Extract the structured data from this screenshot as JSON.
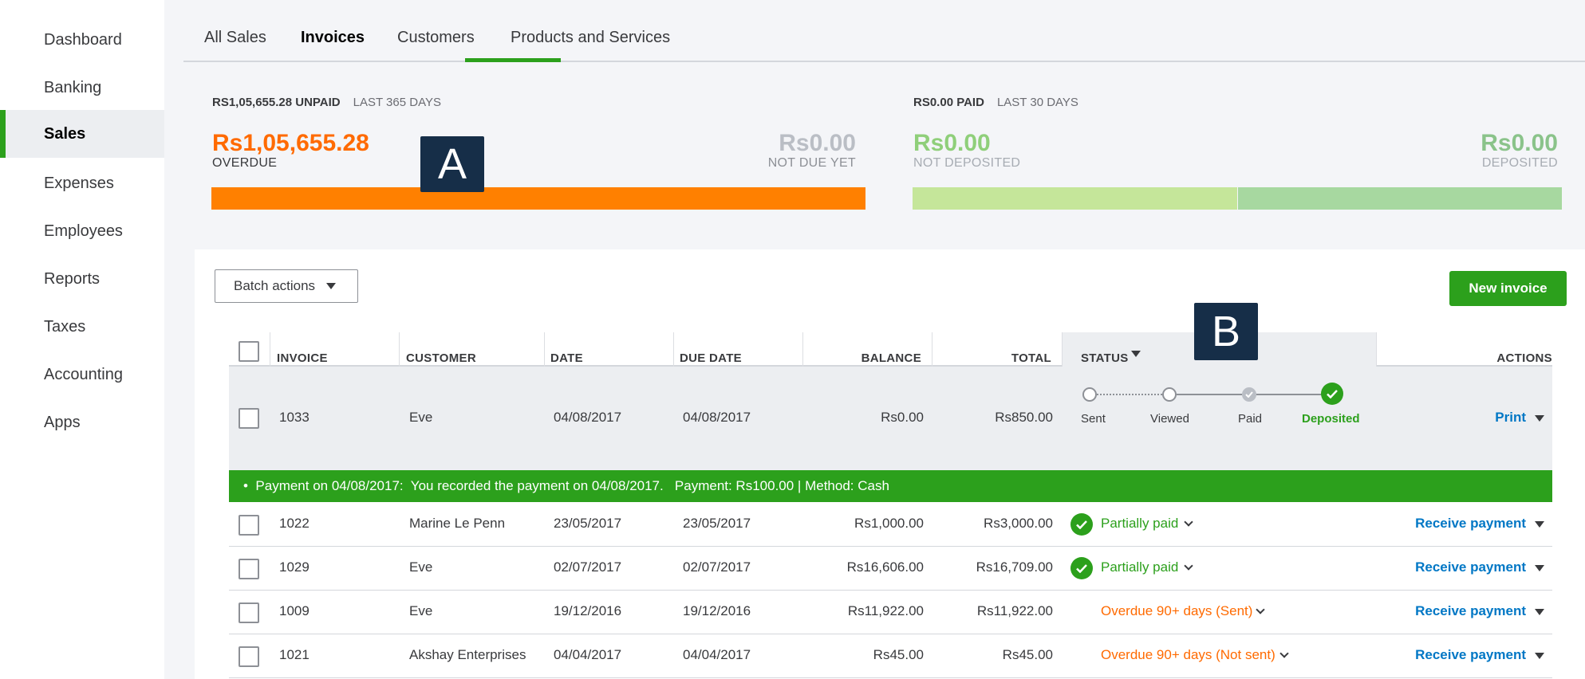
{
  "sidebar": {
    "items": [
      {
        "label": "Dashboard"
      },
      {
        "label": "Banking"
      },
      {
        "label": "Sales",
        "active": true
      },
      {
        "label": "Expenses"
      },
      {
        "label": "Employees"
      },
      {
        "label": "Reports"
      },
      {
        "label": "Taxes"
      },
      {
        "label": "Accounting"
      },
      {
        "label": "Apps"
      }
    ]
  },
  "tabs": [
    {
      "label": "All Sales"
    },
    {
      "label": "Invoices",
      "active": true
    },
    {
      "label": "Customers"
    },
    {
      "label": "Products and Services"
    }
  ],
  "unpaid": {
    "header": "RS1,05,655.28 UNPAID",
    "period": "LAST 365 DAYS",
    "overdue_amount": "Rs1,05,655.28",
    "overdue_label": "OVERDUE",
    "not_due_amount": "Rs0.00",
    "not_due_label": "NOT DUE YET",
    "overdue_color": "#ff8000",
    "overdue_fraction": 1.0
  },
  "paid": {
    "header": "RS0.00 PAID",
    "period": "LAST 30 DAYS",
    "not_deposited_amount": "Rs0.00",
    "not_deposited_label": "NOT DEPOSITED",
    "deposited_amount": "Rs0.00",
    "deposited_label": "DEPOSITED",
    "not_deposited_color": "#c5e69a",
    "deposited_color": "#a7d8a0"
  },
  "markers": {
    "a": "A",
    "b": "B"
  },
  "toolbar": {
    "batch_label": "Batch actions",
    "new_invoice_label": "New invoice"
  },
  "table": {
    "headers": {
      "invoice": "INVOICE",
      "customer": "CUSTOMER",
      "date": "DATE",
      "due_date": "DUE DATE",
      "balance": "BALANCE",
      "total": "TOTAL",
      "status": "STATUS",
      "actions": "ACTIONS"
    },
    "expanded_row": {
      "invoice": "1033",
      "customer": "Eve",
      "date": "04/08/2017",
      "due_date": "04/08/2017",
      "balance": "Rs0.00",
      "total": "Rs850.00",
      "steps": [
        "Sent",
        "Viewed",
        "Paid",
        "Deposited"
      ],
      "action": "Print",
      "payment_note": "•  Payment on 04/08/2017:  You recorded the payment on 04/08/2017.   Payment: Rs100.00 | Method: Cash"
    },
    "rows": [
      {
        "invoice": "1022",
        "customer": "Marine Le Penn",
        "date": "23/05/2017",
        "due_date": "23/05/2017",
        "balance": "Rs1,000.00",
        "total": "Rs3,000.00",
        "status": "Partially paid",
        "action": "Receive payment"
      },
      {
        "invoice": "1029",
        "customer": "Eve",
        "date": "02/07/2017",
        "due_date": "02/07/2017",
        "balance": "Rs16,606.00",
        "total": "Rs16,709.00",
        "status": "Partially paid",
        "action": "Receive payment"
      },
      {
        "invoice": "1009",
        "customer": "Eve",
        "date": "19/12/2016",
        "due_date": "19/12/2016",
        "balance": "Rs11,922.00",
        "total": "Rs11,922.00",
        "status": "Overdue 90+ days (Sent)",
        "action": "Receive payment"
      },
      {
        "invoice": "1021",
        "customer": "Akshay Enterprises",
        "date": "04/04/2017",
        "due_date": "04/04/2017",
        "balance": "Rs45.00",
        "total": "Rs45.00",
        "status": "Overdue 90+ days (Not sent)",
        "action": "Receive payment"
      }
    ]
  }
}
